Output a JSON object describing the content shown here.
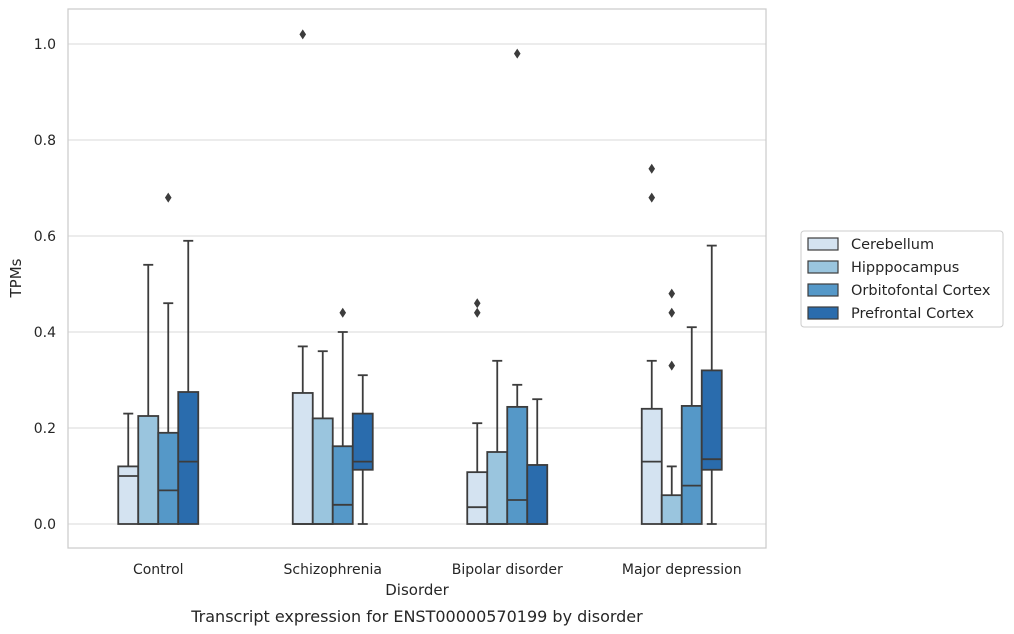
{
  "chart_data": {
    "type": "box",
    "xlabel": "Disorder",
    "ylabel": "TPMs",
    "caption": "Transcript expression for ENST00000570199 by disorder",
    "ylim": [
      -0.05,
      1.07
    ],
    "yticks": [
      0.0,
      0.2,
      0.4,
      0.6,
      0.8,
      1.0
    ],
    "ytick_labels": [
      "0.0",
      "0.2",
      "0.4",
      "0.6",
      "0.8",
      "1.0"
    ],
    "grid": "horizontal",
    "legend_position": "right",
    "categories": [
      "Control",
      "Schizophrenia",
      "Bipolar disorder",
      "Major depression"
    ],
    "series": [
      {
        "name": "Cerebellum",
        "color": "#d4e3f1",
        "boxes": [
          {
            "whislo": 0.0,
            "q1": 0.0,
            "med": 0.1,
            "q3": 0.12,
            "whishi": 0.23,
            "fliers": []
          },
          {
            "whislo": 0.0,
            "q1": 0.0,
            "med": 0.0,
            "q3": 0.273,
            "whishi": 0.37,
            "fliers": [
              1.02
            ]
          },
          {
            "whislo": 0.0,
            "q1": 0.0,
            "med": 0.035,
            "q3": 0.108,
            "whishi": 0.21,
            "fliers": [
              0.46,
              0.44
            ]
          },
          {
            "whislo": 0.0,
            "q1": 0.0,
            "med": 0.13,
            "q3": 0.24,
            "whishi": 0.34,
            "fliers": [
              0.74,
              0.68
            ]
          }
        ]
      },
      {
        "name": "Hipppocampus",
        "color": "#9ac5de",
        "boxes": [
          {
            "whislo": 0.0,
            "q1": 0.0,
            "med": 0.0,
            "q3": 0.225,
            "whishi": 0.54,
            "fliers": []
          },
          {
            "whislo": 0.0,
            "q1": 0.0,
            "med": 0.0,
            "q3": 0.22,
            "whishi": 0.36,
            "fliers": []
          },
          {
            "whislo": 0.0,
            "q1": 0.0,
            "med": 0.0,
            "q3": 0.15,
            "whishi": 0.34,
            "fliers": []
          },
          {
            "whislo": 0.0,
            "q1": 0.0,
            "med": 0.0,
            "q3": 0.06,
            "whishi": 0.12,
            "fliers": [
              0.48,
              0.44,
              0.33
            ]
          }
        ]
      },
      {
        "name": "Orbitofontal Cortex",
        "color": "#5598c8",
        "boxes": [
          {
            "whislo": 0.0,
            "q1": 0.0,
            "med": 0.07,
            "q3": 0.19,
            "whishi": 0.46,
            "fliers": [
              0.68
            ]
          },
          {
            "whislo": 0.0,
            "q1": 0.0,
            "med": 0.04,
            "q3": 0.162,
            "whishi": 0.4,
            "fliers": [
              0.44
            ]
          },
          {
            "whislo": 0.0,
            "q1": 0.0,
            "med": 0.05,
            "q3": 0.244,
            "whishi": 0.29,
            "fliers": [
              0.98
            ]
          },
          {
            "whislo": 0.0,
            "q1": 0.0,
            "med": 0.08,
            "q3": 0.246,
            "whishi": 0.41,
            "fliers": []
          }
        ]
      },
      {
        "name": "Prefrontal Cortex",
        "color": "#2a6cad",
        "boxes": [
          {
            "whislo": 0.0,
            "q1": 0.0,
            "med": 0.13,
            "q3": 0.275,
            "whishi": 0.59,
            "fliers": []
          },
          {
            "whislo": 0.0,
            "q1": 0.113,
            "med": 0.13,
            "q3": 0.23,
            "whishi": 0.31,
            "fliers": []
          },
          {
            "whislo": 0.0,
            "q1": 0.0,
            "med": 0.0,
            "q3": 0.123,
            "whishi": 0.26,
            "fliers": []
          },
          {
            "whislo": 0.0,
            "q1": 0.113,
            "med": 0.135,
            "q3": 0.32,
            "whishi": 0.58,
            "fliers": []
          }
        ]
      }
    ]
  }
}
